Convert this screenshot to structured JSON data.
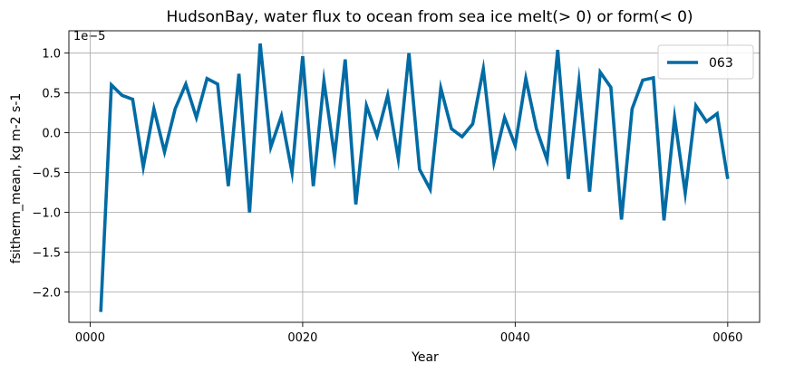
{
  "chart_data": {
    "type": "line",
    "title": "HudsonBay, water flux to ocean from sea ice melt(> 0) or form(< 0)",
    "xlabel": "Year",
    "ylabel": "fsitherm_mean, kg m-2 s-1",
    "offset_label": "1e−5",
    "xlim": [
      -2.0,
      63.0
    ],
    "ylim": [
      -2.38,
      1.28
    ],
    "x_ticks": [
      0,
      20,
      40,
      60
    ],
    "x_tick_labels": [
      "0000",
      "0020",
      "0040",
      "0060"
    ],
    "y_ticks": [
      -2.0,
      -1.5,
      -1.0,
      -0.5,
      0.0,
      0.5,
      1.0
    ],
    "y_tick_labels": [
      "−2.0",
      "−1.5",
      "−1.0",
      "−0.5",
      "0.0",
      "0.5",
      "1.0"
    ],
    "grid": true,
    "legend_position": "top-right",
    "series": [
      {
        "name": "063",
        "color": "#006BA4",
        "x": [
          1,
          2,
          3,
          4,
          5,
          6,
          7,
          8,
          9,
          10,
          11,
          12,
          13,
          14,
          15,
          16,
          17,
          18,
          19,
          20,
          21,
          22,
          23,
          24,
          25,
          26,
          27,
          28,
          29,
          30,
          31,
          32,
          33,
          34,
          35,
          36,
          37,
          38,
          39,
          40,
          41,
          42,
          43,
          44,
          45,
          46,
          47,
          48,
          49,
          50,
          51,
          52,
          53,
          54,
          55,
          56,
          57,
          58,
          59,
          60
        ],
        "y": [
          -2.25,
          0.6,
          0.47,
          0.42,
          -0.43,
          0.3,
          -0.24,
          0.3,
          0.61,
          0.19,
          0.68,
          0.61,
          -0.67,
          0.74,
          -1.0,
          1.12,
          -0.18,
          0.21,
          -0.5,
          0.96,
          -0.67,
          0.65,
          -0.3,
          0.92,
          -0.9,
          0.34,
          -0.04,
          0.47,
          -0.33,
          1.0,
          -0.46,
          -0.71,
          0.56,
          0.05,
          -0.05,
          0.11,
          0.8,
          -0.37,
          0.19,
          -0.16,
          0.68,
          0.05,
          -0.34,
          1.04,
          -0.58,
          0.64,
          -0.74,
          0.76,
          0.57,
          -1.09,
          0.3,
          0.66,
          0.69,
          -1.1,
          0.19,
          -0.76,
          0.34,
          0.14,
          0.24,
          -0.58
        ]
      }
    ]
  }
}
